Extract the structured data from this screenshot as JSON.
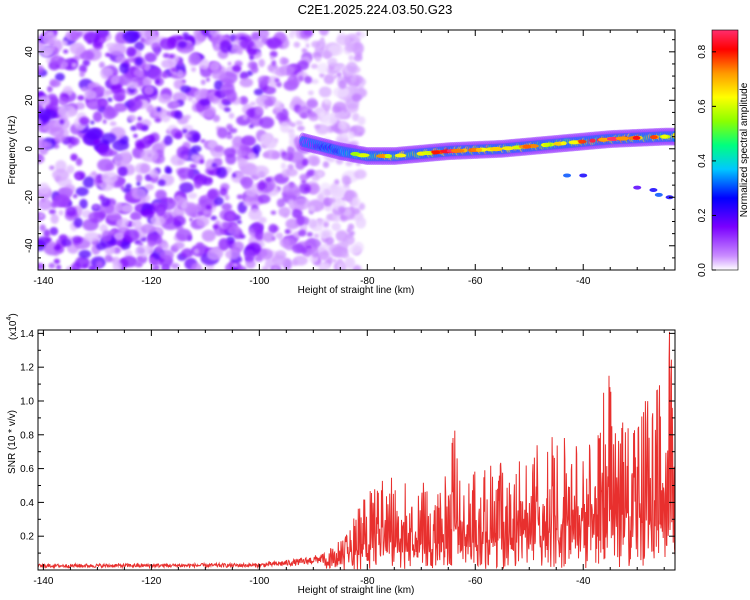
{
  "page": {
    "title": "C2E1.2025.224.03.50.G23"
  },
  "chart_data": [
    {
      "type": "heatmap",
      "title": "C2E1.2025.224.03.50.G23",
      "xlabel": "Height of straight line (km)",
      "ylabel": "Frequency (Hz)",
      "xlim": [
        -141,
        -23
      ],
      "ylim": [
        -50,
        49
      ],
      "xticks": [
        -140,
        -120,
        -100,
        -80,
        -60,
        -40
      ],
      "xtick_labels": [
        "-140",
        "-120",
        "-100",
        "-80",
        "-60",
        "-40"
      ],
      "yticks": [
        -40,
        -20,
        0,
        20,
        40
      ],
      "ytick_labels": [
        "-40",
        "-20",
        "0",
        "20",
        "40"
      ],
      "colorbar": {
        "label": "Normalized spectral amplitude",
        "range": [
          0.0,
          0.88
        ],
        "ticks": [
          0.0,
          0.2,
          0.4,
          0.6,
          0.8
        ],
        "tick_labels": [
          "0.0",
          "0.2",
          "0.4",
          "0.6",
          "0.8"
        ],
        "colors": [
          "#ffffff",
          "#c98bff",
          "#7a00ff",
          "#0000ff",
          "#00c8ff",
          "#00ff7f",
          "#8cff00",
          "#ffff00",
          "#ff9900",
          "#ff0000",
          "#ff2d6e"
        ]
      },
      "noise_region": {
        "x_range": [
          -141,
          -85
        ],
        "y_range": [
          -50,
          49
        ],
        "level": 0.15
      },
      "ridge": {
        "x": [
          -92,
          -85,
          -80,
          -75,
          -70,
          -65,
          -60,
          -55,
          -50,
          -45,
          -40,
          -35,
          -30,
          -25,
          -23
        ],
        "freq": [
          3,
          -1,
          -3,
          -3,
          -2,
          -1,
          -0.5,
          0,
          1,
          2,
          3,
          4,
          4.5,
          5,
          5
        ],
        "amplitude": [
          0.15,
          0.35,
          0.55,
          0.65,
          0.6,
          0.8,
          0.7,
          0.6,
          0.65,
          0.55,
          0.7,
          0.75,
          0.7,
          0.6,
          0.65
        ]
      },
      "side_streak": {
        "x": [
          -43,
          -40,
          -30,
          -27,
          -26,
          -24
        ],
        "freq": [
          -11,
          -11,
          -16,
          -17,
          -19,
          -20
        ],
        "amplitude": [
          0.3,
          0.25,
          0.2,
          0.25,
          0.3,
          0.25
        ]
      },
      "grid": false
    },
    {
      "type": "line",
      "xlabel": "Height of straight line (km)",
      "ylabel": "SNR (10 * v/v)",
      "y_multiplier": "(x10",
      "y_multiplier_exp": "4",
      "xlim": [
        -141,
        -23
      ],
      "ylim": [
        0,
        14200
      ],
      "xticks": [
        -140,
        -120,
        -100,
        -80,
        -60,
        -40
      ],
      "xtick_labels": [
        "-140",
        "-120",
        "-100",
        "-80",
        "-60",
        "-40"
      ],
      "yticks": [
        2000,
        4000,
        6000,
        8000,
        10000,
        12000,
        14000
      ],
      "ytick_labels": [
        "0.2",
        "0.4",
        "0.6",
        "0.8",
        "1.0",
        "1.2",
        "1.4"
      ],
      "color": "#e8302e",
      "envelope": {
        "x": [
          -141,
          -100,
          -92,
          -88,
          -86,
          -84,
          -82,
          -80,
          -79,
          -77,
          -75,
          -74,
          -72,
          -71,
          -70,
          -69,
          -68,
          -67,
          -66,
          -65,
          -64,
          -63,
          -62,
          -61,
          -60,
          -59,
          -58,
          -57,
          -56,
          -55,
          -54,
          -53,
          -52,
          -51,
          -50,
          -49,
          -48,
          -47,
          -46,
          -45,
          -44,
          -43,
          -42,
          -41,
          -40,
          -39,
          -38,
          -37,
          -36,
          -35,
          -34,
          -33,
          -32,
          -31,
          -30,
          -29,
          -28,
          -27,
          -26,
          -25,
          -24.5,
          -24,
          -23.5,
          -23
        ],
        "y": [
          350,
          400,
          700,
          1000,
          1500,
          2000,
          3500,
          4800,
          5000,
          5400,
          5600,
          5000,
          6000,
          4500,
          5800,
          5000,
          3500,
          4500,
          5200,
          6000,
          9000,
          5500,
          4500,
          6200,
          5800,
          5500,
          6500,
          6800,
          4500,
          7600,
          5000,
          6000,
          6400,
          6800,
          7000,
          7500,
          8000,
          6200,
          8300,
          8000,
          7800,
          8200,
          6600,
          7800,
          8400,
          7500,
          8500,
          8000,
          12000,
          11500,
          9000,
          9000,
          9800,
          8000,
          9000,
          10000,
          11000,
          9500,
          11500,
          8000,
          10000,
          14200,
          12500,
          8500
        ]
      },
      "grid": false
    }
  ]
}
